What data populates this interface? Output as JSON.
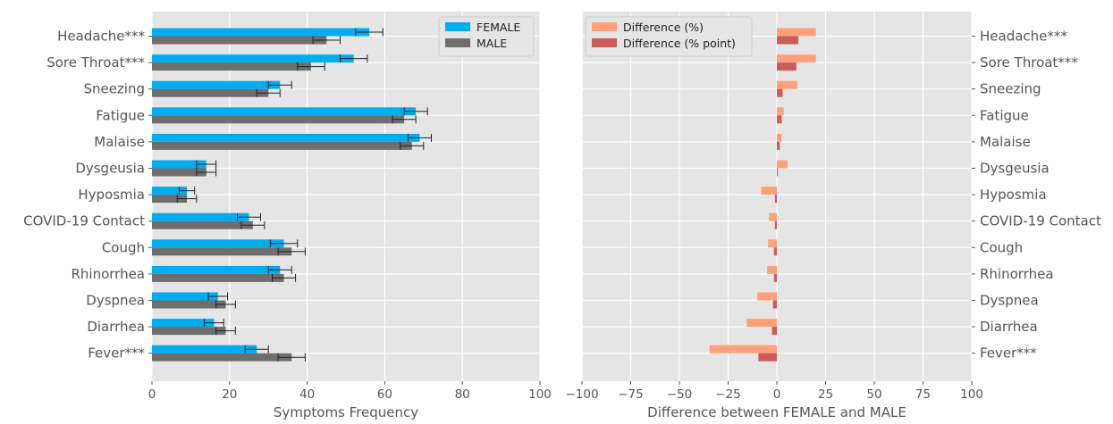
{
  "chart_data": [
    {
      "type": "bar",
      "orientation": "horizontal",
      "categories": [
        "Headache***",
        "Sore Throat***",
        "Sneezing",
        "Fatigue",
        "Malaise",
        "Dysgeusia",
        "Hyposmia",
        "COVID-19 Contact",
        "Cough",
        "Rhinorrhea",
        "Dyspnea",
        "Diarrhea",
        "Fever***"
      ],
      "series": [
        {
          "name": "FEMALE",
          "color": "#00aef0",
          "values": [
            56,
            52,
            33,
            68,
            69,
            14,
            9,
            25,
            34,
            33,
            17,
            16,
            27
          ],
          "error": [
            3.5,
            3.5,
            3,
            3,
            3,
            2.5,
            2,
            3,
            3.5,
            3,
            2.5,
            2.5,
            3
          ]
        },
        {
          "name": "MALE",
          "color": "#6e6e6e",
          "values": [
            45,
            41,
            30,
            65,
            67,
            14,
            9,
            26,
            36,
            34,
            19,
            19,
            36
          ],
          "error": [
            3.5,
            3.5,
            3,
            3,
            3,
            2.5,
            2.5,
            3,
            3.5,
            3,
            2.5,
            2.5,
            3.5
          ]
        }
      ],
      "xlabel": "Symptoms Frequency",
      "xlim": [
        0,
        100
      ],
      "xticks": [
        0,
        20,
        40,
        60,
        80,
        100
      ],
      "grid": true,
      "legend_position": "top-right"
    },
    {
      "type": "bar",
      "orientation": "horizontal",
      "categories": [
        "Headache***",
        "Sore Throat***",
        "Sneezing",
        "Fatigue",
        "Malaise",
        "Dysgeusia",
        "Hyposmia",
        "COVID-19 Contact",
        "Cough",
        "Rhinorrhea",
        "Dyspnea",
        "Diarrhea",
        "Fever***"
      ],
      "series": [
        {
          "name": "Difference (%)",
          "color": "#ffa07a",
          "values": [
            20,
            20,
            10.5,
            3.5,
            2.5,
            5.5,
            -8,
            -4,
            -4.5,
            -5,
            -10,
            -15.5,
            -34.5
          ]
        },
        {
          "name": "Difference (% point)",
          "color": "#cd5c5c",
          "values": [
            11,
            10,
            3,
            2.5,
            1.5,
            0.5,
            -1,
            -1,
            -1.5,
            -1.5,
            -2,
            -2.5,
            -9.5
          ]
        }
      ],
      "xlabel": "Difference between FEMALE and MALE",
      "xlim": [
        -100,
        100
      ],
      "xticks": [
        -100,
        -75,
        -50,
        -25,
        0,
        25,
        50,
        75,
        100
      ],
      "yaxis_side": "right",
      "grid": true,
      "legend_position": "top-left"
    }
  ]
}
